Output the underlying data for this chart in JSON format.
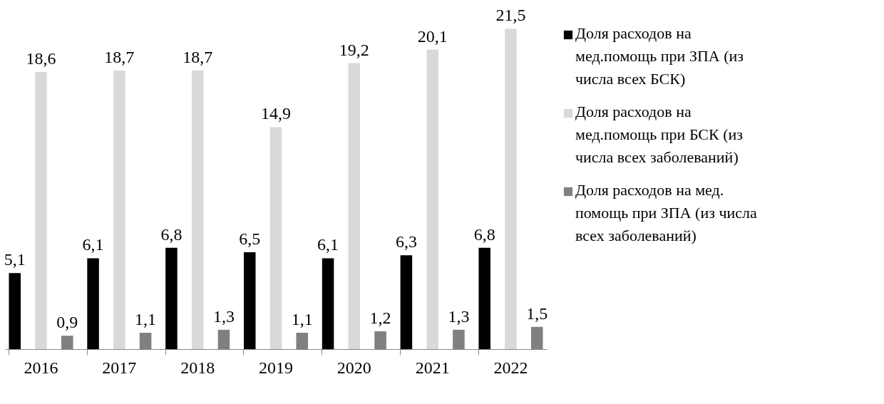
{
  "chart_data": {
    "type": "bar",
    "categories": [
      "2016",
      "2017",
      "2018",
      "2019",
      "2020",
      "2021",
      "2022"
    ],
    "series": [
      {
        "name": "Доля  расходов на мед.помощь при ЗПА (из числа всех БСК)",
        "color": "#000000",
        "values": [
          5.1,
          6.1,
          6.8,
          6.5,
          6.1,
          6.3,
          6.8
        ],
        "value_labels": [
          "5,1",
          "6,1",
          "6,8",
          "6,5",
          "6,1",
          "6,3",
          "6,8"
        ]
      },
      {
        "name": "Доля расходов на мед.помощь при БСК (из числа всех заболеваний)",
        "color": "#d9d9d9",
        "values": [
          18.6,
          18.7,
          18.7,
          14.9,
          19.2,
          20.1,
          21.5
        ],
        "value_labels": [
          "18,6",
          "18,7",
          "18,7",
          "14,9",
          "19,2",
          "20,1",
          "21,5"
        ]
      },
      {
        "name": "Доля расходов на мед. помощь при ЗПА (из числа всех заболеваний)",
        "color": "#808080",
        "values": [
          0.9,
          1.1,
          1.3,
          1.1,
          1.2,
          1.3,
          1.5
        ],
        "value_labels": [
          "0,9",
          "1,1",
          "1,3",
          "1,1",
          "1,2",
          "1,3",
          "1,5"
        ]
      }
    ],
    "legend": "right",
    "grid": false
  }
}
